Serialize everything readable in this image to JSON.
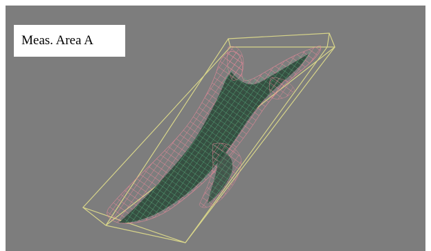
{
  "viewer": {
    "label": "Meas. Area A"
  },
  "colors": {
    "background": "#7d7d7d",
    "bounding_box": "#d8d58a",
    "mesh_pink": "#e88a9a",
    "mesh_green": "#4fae7c",
    "body_dark": "#2e4a3b"
  }
}
